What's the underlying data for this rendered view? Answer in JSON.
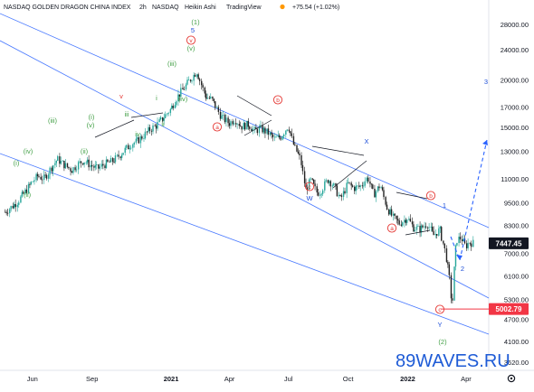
{
  "header": {
    "symbol_title": "NASDAQ GOLDEN DRAGON CHINA INDEX",
    "interval": "2h",
    "exchange": "NASDAQ",
    "chart_style": "Heikin Ashi",
    "brand": "TradingView",
    "change": "+75.54 (+1.02%)"
  },
  "watermark": "89WAVES.RU",
  "settings_icon": "gear-icon",
  "colors": {
    "candle_up": "#26a69a",
    "candle_down": "#222222",
    "channel": "#2962ff",
    "label_red": "#e53935",
    "label_green": "#43a047",
    "label_blue": "#1e4fd8",
    "price_tag_dark": "#131722",
    "price_tag_red": "#f23645",
    "watermark": "#1e5bd6"
  },
  "chart_data": {
    "type": "line",
    "style": "Heikin Ashi candles",
    "x": [
      "2020-04-20",
      "2020-05-01",
      "2020-05-10",
      "2020-05-20",
      "2020-06-01",
      "2020-06-10",
      "2020-06-20",
      "2020-07-01",
      "2020-07-10",
      "2020-07-20",
      "2020-08-01",
      "2020-08-10",
      "2020-08-20",
      "2020-09-01",
      "2020-09-10",
      "2020-09-20",
      "2020-10-01",
      "2020-10-10",
      "2020-10-20",
      "2020-11-01",
      "2020-11-10",
      "2020-11-20",
      "2020-12-01",
      "2020-12-10",
      "2020-12-20",
      "2021-01-01",
      "2021-01-10",
      "2021-01-20",
      "2021-02-01",
      "2021-02-10",
      "2021-02-17",
      "2021-02-24",
      "2021-03-05",
      "2021-03-10",
      "2021-03-20",
      "2021-04-01",
      "2021-04-10",
      "2021-04-20",
      "2021-05-01",
      "2021-05-10",
      "2021-05-20",
      "2021-06-01",
      "2021-06-10",
      "2021-06-20",
      "2021-07-01",
      "2021-07-10",
      "2021-07-20",
      "2021-07-28",
      "2021-08-05",
      "2021-08-15",
      "2021-08-20",
      "2021-09-01",
      "2021-09-10",
      "2021-09-20",
      "2021-10-01",
      "2021-10-10",
      "2021-10-20",
      "2021-11-01",
      "2021-11-10",
      "2021-11-20",
      "2021-12-01",
      "2021-12-10",
      "2021-12-20",
      "2022-01-01",
      "2022-01-10",
      "2022-01-20",
      "2022-02-01",
      "2022-02-10",
      "2022-02-20",
      "2022-03-01",
      "2022-03-07",
      "2022-03-11",
      "2022-03-15",
      "2022-03-18",
      "2022-03-25",
      "2022-04-01",
      "2022-04-06",
      "2022-04-12"
    ],
    "values": [
      9000,
      9300,
      9600,
      10100,
      10800,
      11200,
      11000,
      11800,
      12400,
      12000,
      11600,
      12000,
      12300,
      11900,
      11700,
      12000,
      12200,
      12500,
      13000,
      13600,
      13800,
      14300,
      14900,
      15200,
      15900,
      16800,
      18000,
      18900,
      20200,
      21100,
      19500,
      18100,
      17800,
      17200,
      16000,
      15400,
      15800,
      15100,
      15300,
      14700,
      14900,
      14500,
      14000,
      14200,
      15200,
      13400,
      12400,
      10300,
      10900,
      10100,
      10200,
      11000,
      10500,
      9700,
      10700,
      10400,
      10500,
      11100,
      10000,
      10600,
      9200,
      8700,
      8400,
      8700,
      8200,
      8100,
      8400,
      7800,
      8100,
      7000,
      6000,
      5002.79,
      6800,
      7600,
      7700,
      7300,
      7500,
      7447.45
    ],
    "ylim": [
      3450,
      32500
    ],
    "y_scale": "log",
    "y_ticks": [
      "3620.00",
      "4100.00",
      "4700.00",
      "5300.00",
      "6100.00",
      "7000.00",
      "8300.00",
      "9500.00",
      "11000.00",
      "13000.00",
      "15000.00",
      "17000.00",
      "20000.00",
      "24000.00",
      "28000.00"
    ],
    "x_ticks": [
      "Jun",
      "Sep",
      "2021",
      "Apr",
      "Jul",
      "Oct",
      "2022",
      "Apr"
    ],
    "current_price": "7447.45",
    "marked_low": "5002.79",
    "wave_labels": [
      "(1)",
      "5",
      "v",
      "(v)",
      "(iii)",
      "(iv)",
      "i",
      "ii",
      "iii",
      "iv",
      "v",
      "(i)",
      "(ii)",
      "(iii)",
      "(iv)",
      "(v)",
      "(i)",
      "(ii)",
      "a",
      "b",
      "c",
      "a",
      "b",
      "c",
      "W",
      "X",
      "Y",
      "(2)",
      "1",
      "2",
      "3"
    ],
    "grid": false
  }
}
